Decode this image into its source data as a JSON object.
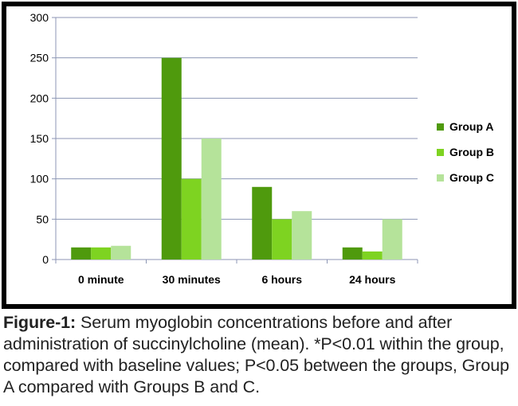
{
  "chart_data": {
    "type": "bar",
    "categories": [
      "0 minute",
      "30 minutes",
      "6 hours",
      "24 hours"
    ],
    "series": [
      {
        "name": "Group A",
        "values": [
          15,
          250,
          90,
          15
        ],
        "color": "#4f9a0d"
      },
      {
        "name": "Group B",
        "values": [
          15,
          100,
          50,
          10
        ],
        "color": "#7ed321"
      },
      {
        "name": "Group C",
        "values": [
          17,
          150,
          60,
          50
        ],
        "color": "#b5e39a"
      }
    ],
    "yticks": [
      0,
      50,
      100,
      150,
      200,
      250,
      300
    ],
    "ylim": [
      0,
      300
    ],
    "grid": true,
    "legend": "right"
  },
  "caption": {
    "label": "Figure-1:",
    "text": " Serum myoglobin concentrations before and after administration of succinylcholine (mean). *P<0.01 within the group, compared with baseline values; P<0.05 between the groups, Group A compared with Groups B and C."
  }
}
